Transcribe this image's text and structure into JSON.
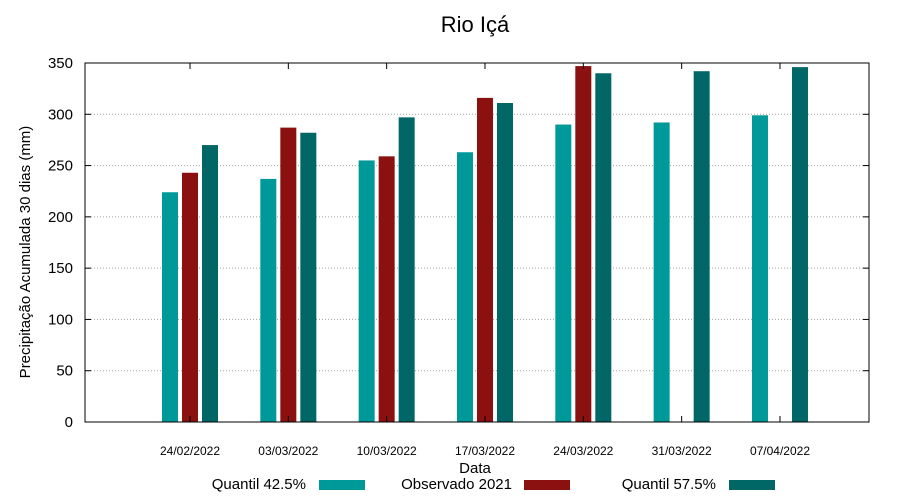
{
  "chart_data": {
    "type": "bar",
    "title": "Rio Içá",
    "xlabel": "Data",
    "ylabel": "Precipitação Acumulada 30 dias (mm)",
    "ylim": [
      0,
      350
    ],
    "yticks": [
      0,
      50,
      100,
      150,
      200,
      250,
      300,
      350
    ],
    "grid": true,
    "categories": [
      "24/02/2022",
      "03/03/2022",
      "10/03/2022",
      "17/03/2022",
      "24/03/2022",
      "31/03/2022",
      "07/04/2022"
    ],
    "series": [
      {
        "name": "Quantil 42.5%",
        "color": "#009999",
        "values": [
          224,
          237,
          255,
          263,
          290,
          292,
          299
        ]
      },
      {
        "name": "Observado 2021",
        "color": "#8b1010",
        "values": [
          243,
          287,
          259,
          316,
          347,
          null,
          null
        ]
      },
      {
        "name": "Quantil 57.5%",
        "color": "#006666",
        "values": [
          270,
          282,
          297,
          311,
          340,
          342,
          346
        ]
      }
    ],
    "legend_position": "bottom"
  }
}
